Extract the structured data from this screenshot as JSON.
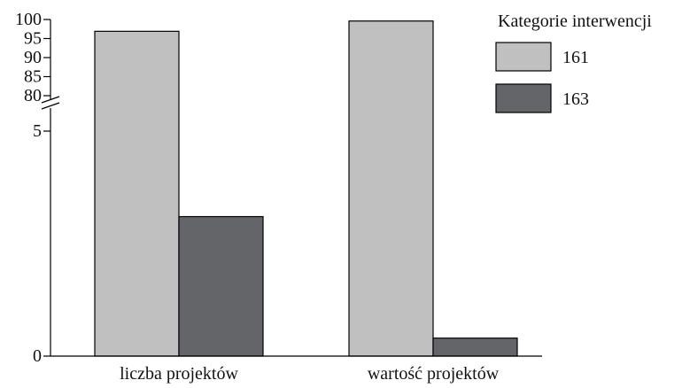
{
  "chart_data": {
    "type": "bar",
    "categories": [
      "liczba projektów",
      "wartość projektów"
    ],
    "series": [
      {
        "name": "161",
        "values": [
          96.9,
          99.6
        ],
        "color": "#c0c0c0"
      },
      {
        "name": "163",
        "values": [
          3.1,
          0.4
        ],
        "color": "#646569"
      }
    ],
    "legend": {
      "title": "Kategorie interwencji",
      "placement": "top-right"
    },
    "y_axis": {
      "broken": true,
      "lower_segment": {
        "range": [
          0,
          5
        ],
        "ticks": [
          0,
          5
        ]
      },
      "upper_segment": {
        "range": [
          80,
          100
        ],
        "ticks": [
          80,
          85,
          90,
          95,
          100
        ]
      }
    },
    "grid": false,
    "title": "",
    "xlabel": "",
    "ylabel": ""
  }
}
